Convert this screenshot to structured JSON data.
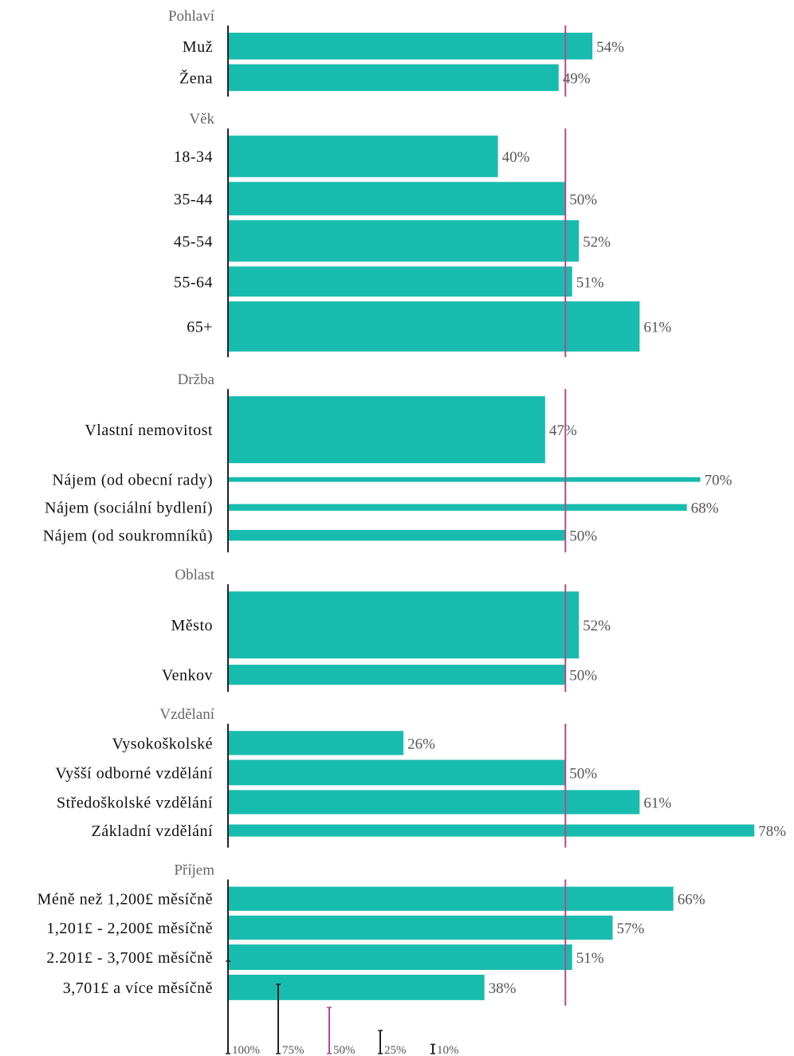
{
  "chart_data": {
    "type": "bar",
    "orientation": "horizontal",
    "reference_line": 50,
    "colors": {
      "bar": "#18bcae",
      "reference_line": "#b5498f",
      "axis": "#222222",
      "group_title": "#666666",
      "label": "#111111"
    },
    "groups": [
      {
        "title": "Pohlaví",
        "items": [
          {
            "label": "Muž",
            "value": 54,
            "value_label": "54%",
            "sample_weight": 0.4
          },
          {
            "label": "Žena",
            "value": 49,
            "value_label": "49%",
            "sample_weight": 0.4
          }
        ]
      },
      {
        "title": "Věk",
        "items": [
          {
            "label": "18-34",
            "value": 40,
            "value_label": "40%",
            "sample_weight": 0.62
          },
          {
            "label": "35-44",
            "value": 50,
            "value_label": "50%",
            "sample_weight": 0.5
          },
          {
            "label": "45-54",
            "value": 52,
            "value_label": "52%",
            "sample_weight": 0.62
          },
          {
            "label": "55-64",
            "value": 51,
            "value_label": "51%",
            "sample_weight": 0.45
          },
          {
            "label": "65+",
            "value": 61,
            "value_label": "61%",
            "sample_weight": 0.75
          }
        ]
      },
      {
        "title": "Držba",
        "items": [
          {
            "label": "Vlastní nemovitost",
            "value": 47,
            "value_label": "47%",
            "sample_weight": 1.0
          },
          {
            "label": "Nájem (od obecní rady)",
            "value": 70,
            "value_label": "70%",
            "sample_weight": 0.07
          },
          {
            "label": "Nájem (sociální bydlení)",
            "value": 68,
            "value_label": "68%",
            "sample_weight": 0.1
          },
          {
            "label": "Nájem (od soukromníků)",
            "value": 50,
            "value_label": "50%",
            "sample_weight": 0.16
          }
        ]
      },
      {
        "title": "Oblast",
        "items": [
          {
            "label": "Město",
            "value": 52,
            "value_label": "52%",
            "sample_weight": 1.0
          },
          {
            "label": "Venkov",
            "value": 50,
            "value_label": "50%",
            "sample_weight": 0.3
          }
        ]
      },
      {
        "title": "Vzdělaní",
        "items": [
          {
            "label": "Vysokoškolské",
            "value": 26,
            "value_label": "26%",
            "sample_weight": 0.36
          },
          {
            "label": "Vyšší odborné vzdělání",
            "value": 50,
            "value_label": "50%",
            "sample_weight": 0.38
          },
          {
            "label": "Středoškolské vzdělání",
            "value": 61,
            "value_label": "61%",
            "sample_weight": 0.36
          },
          {
            "label": "Základní vzdělání",
            "value": 78,
            "value_label": "78%",
            "sample_weight": 0.18
          }
        ]
      },
      {
        "title": "Příjem",
        "items": [
          {
            "label": "Méně než  1,200£ měsíčně",
            "value": 66,
            "value_label": "66%",
            "sample_weight": 0.36
          },
          {
            "label": "1,201£ - 2,200£ měsíčně",
            "value": 57,
            "value_label": "57%",
            "sample_weight": 0.36
          },
          {
            "label": "2.201£ - 3,700£ měsíčně",
            "value": 51,
            "value_label": "51%",
            "sample_weight": 0.38
          },
          {
            "label": "3,701£  a více měsíčně",
            "value": 38,
            "value_label": "38%",
            "sample_weight": 0.38
          }
        ]
      }
    ],
    "size_legend": [
      {
        "label": "100%",
        "value": 100
      },
      {
        "label": "75%",
        "value": 75
      },
      {
        "label": "50%",
        "value": 50,
        "highlight": true
      },
      {
        "label": "25%",
        "value": 25
      },
      {
        "label": "10%",
        "value": 10
      }
    ]
  }
}
